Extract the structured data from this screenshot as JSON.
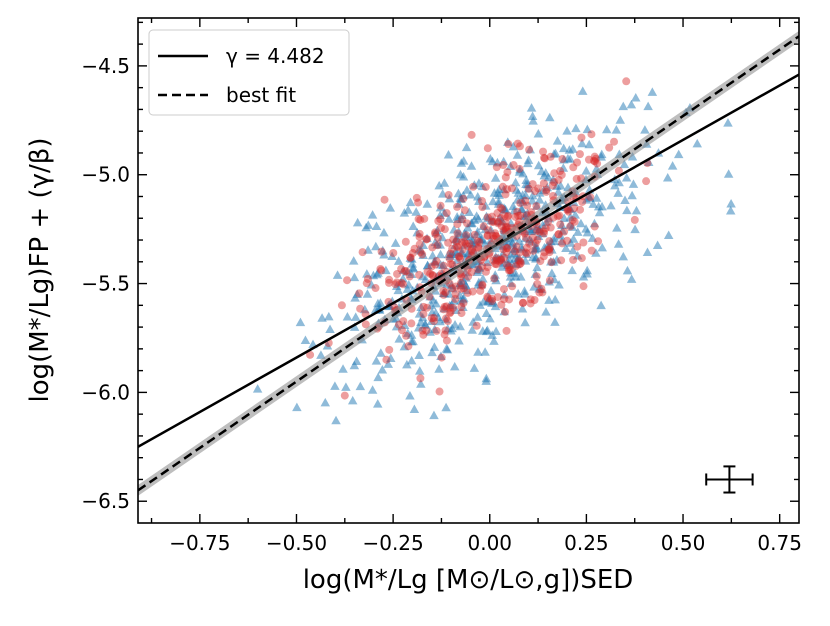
{
  "chart_data": {
    "type": "scatter",
    "xlabel": "log(M*/Lg [M⊙/L⊙,g])SED",
    "ylabel": "log(M*/Lg)FP + (γ/β)",
    "xlim": [
      -0.91,
      0.8
    ],
    "ylim": [
      -6.6,
      -4.28
    ],
    "x_ticks": [
      -0.75,
      -0.5,
      -0.25,
      0.0,
      0.25,
      0.5,
      0.75
    ],
    "x_tick_labels": [
      "−0.75",
      "−0.50",
      "−0.25",
      "0.00",
      "0.25",
      "0.50",
      "0.75"
    ],
    "y_ticks": [
      -6.5,
      -6.0,
      -5.5,
      -5.0,
      -4.5
    ],
    "y_tick_labels": [
      "−6.5",
      "−6.0",
      "−5.5",
      "−5.0",
      "−4.5"
    ],
    "series": [
      {
        "name": "triangles",
        "marker": "triangle",
        "color": "#1f77b4",
        "alpha": 0.5,
        "center": [
          0.0,
          -5.35
        ],
        "sx": 0.2,
        "sy": 0.28,
        "rho": 0.6,
        "count": 620,
        "seed": 7
      },
      {
        "name": "circles",
        "marker": "circle",
        "color": "#d62728",
        "alpha": 0.45,
        "center": [
          0.0,
          -5.33
        ],
        "sx": 0.16,
        "sy": 0.22,
        "rho": 0.65,
        "count": 430,
        "seed": 13
      }
    ],
    "lines": [
      {
        "name": "γ = 4.482",
        "style": "solid",
        "slope": 1.0,
        "intercept": -5.34
      },
      {
        "name": "best fit",
        "style": "dashed",
        "slope": 1.22,
        "intercept": -5.34,
        "band": 0.025
      }
    ],
    "error_bar": {
      "x": 0.62,
      "y": -6.4,
      "xerr": 0.06,
      "yerr": 0.06
    },
    "legend": {
      "position": "upper-left",
      "entries": [
        {
          "label": "γ = 4.482",
          "style": "solid"
        },
        {
          "label": "best fit",
          "style": "dashed"
        }
      ]
    }
  }
}
